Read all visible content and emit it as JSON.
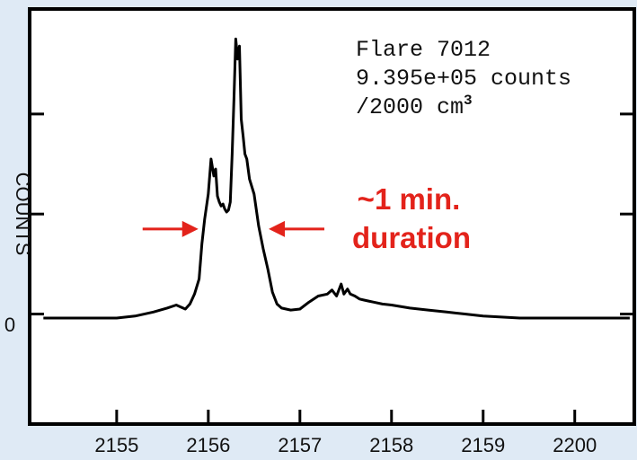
{
  "chart_data": {
    "type": "line",
    "xlim": [
      2154.05,
      2160.65
    ],
    "ylim": [
      -1.1,
      3.05
    ],
    "x_ticks": [
      2155,
      2156,
      2157,
      2158,
      2159,
      2160
    ],
    "x_tick_labels": [
      "2155",
      "2156",
      "2157",
      "2158",
      "2159",
      "2200"
    ],
    "y_ticks": [
      0,
      1,
      2
    ],
    "y_tick_labels": [
      "0",
      "",
      ""
    ],
    "ylabel_fragment": "COUNTS",
    "annotation_box": {
      "line1": "Flare 7012",
      "line2": "9.395e+05 counts",
      "line3_prefix": "/2000 cm",
      "line3_sup": "3"
    },
    "duration_annotation": {
      "line1": "~1 min.",
      "line2": "duration",
      "left_arrow_x": 2155.95,
      "right_arrow_x": 2156.6,
      "arrow_y": 0.85,
      "color": "#e3231b"
    },
    "series": [
      {
        "x": [
          2154.2,
          2154.5,
          2154.8,
          2155.0,
          2155.2,
          2155.4,
          2155.55,
          2155.65,
          2155.7,
          2155.75,
          2155.8,
          2155.85,
          2155.9,
          2155.93,
          2155.96,
          2156.0,
          2156.03,
          2156.06,
          2156.08,
          2156.1,
          2156.12,
          2156.14,
          2156.16,
          2156.18,
          2156.2,
          2156.22,
          2156.24,
          2156.26,
          2156.28,
          2156.3,
          2156.32,
          2156.34,
          2156.36,
          2156.38,
          2156.4,
          2156.42,
          2156.45,
          2156.5,
          2156.55,
          2156.6,
          2156.65,
          2156.7,
          2156.75,
          2156.8,
          2156.9,
          2157.0,
          2157.1,
          2157.2,
          2157.3,
          2157.35,
          2157.4,
          2157.45,
          2157.48,
          2157.52,
          2157.55,
          2157.6,
          2157.65,
          2157.7,
          2157.75,
          2157.8,
          2157.9,
          2158.0,
          2158.2,
          2158.4,
          2158.6,
          2158.8,
          2159.0,
          2159.2,
          2159.4,
          2159.6,
          2159.8,
          2160.0,
          2160.3,
          2160.6
        ],
        "y": [
          -0.04,
          -0.04,
          -0.04,
          -0.04,
          -0.02,
          0.02,
          0.06,
          0.09,
          0.07,
          0.05,
          0.1,
          0.2,
          0.35,
          0.7,
          0.95,
          1.2,
          1.55,
          1.38,
          1.45,
          1.18,
          1.12,
          1.08,
          1.1,
          1.05,
          1.02,
          1.04,
          1.12,
          1.6,
          2.15,
          2.75,
          2.55,
          2.68,
          1.95,
          1.78,
          1.6,
          1.55,
          1.35,
          1.2,
          0.88,
          0.65,
          0.45,
          0.22,
          0.1,
          0.06,
          0.04,
          0.05,
          0.12,
          0.18,
          0.2,
          0.24,
          0.18,
          0.3,
          0.2,
          0.25,
          0.2,
          0.18,
          0.15,
          0.14,
          0.13,
          0.12,
          0.1,
          0.09,
          0.06,
          0.04,
          0.02,
          0.0,
          -0.02,
          -0.03,
          -0.04,
          -0.04,
          -0.04,
          -0.04,
          -0.04,
          -0.04
        ]
      }
    ]
  }
}
